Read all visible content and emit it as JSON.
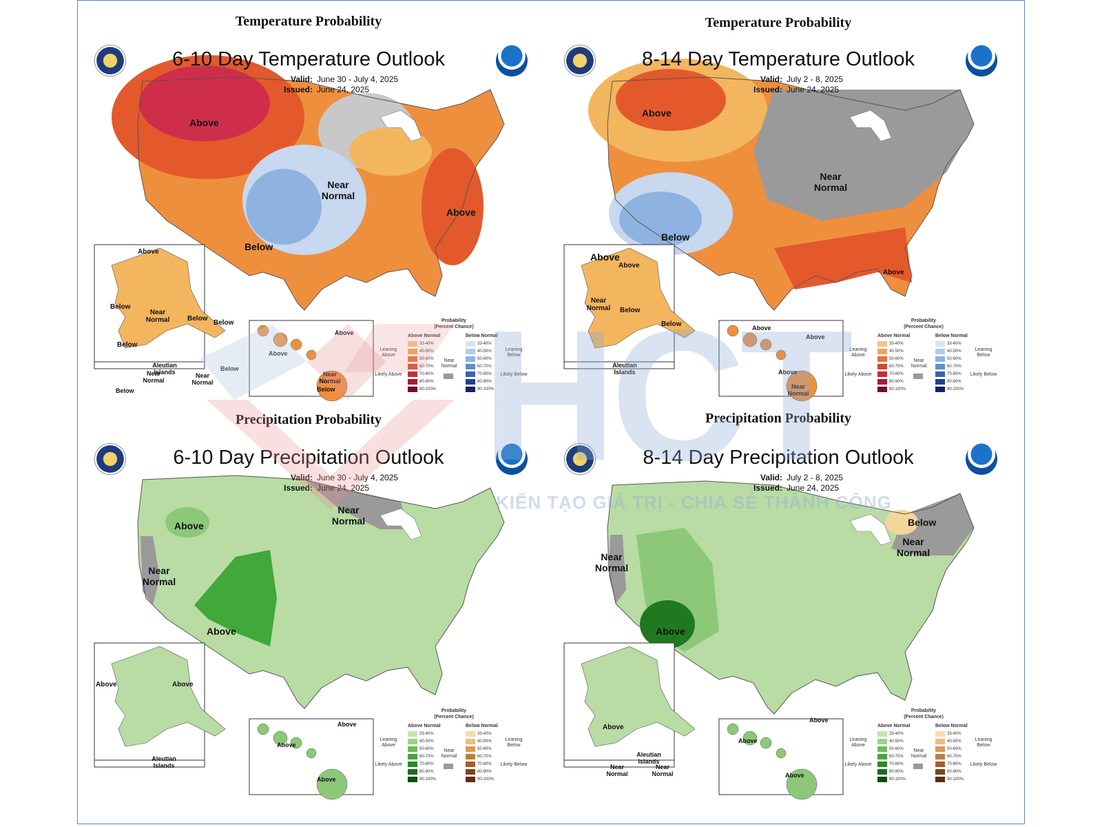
{
  "colors": {
    "frame": "#5b7fd1",
    "above_light": "#f4b55f",
    "above_mid": "#ee8f3e",
    "above_strong": "#e3592c",
    "above_max": "#cf2e4b",
    "below_light": "#c8d8ee",
    "below_mid": "#8fb3e0",
    "near_normal": "#9a9a9a",
    "wet_light": "#b8dca4",
    "wet_mid": "#8cc878",
    "wet_strong": "#41a83a",
    "wet_max": "#1f7a1f",
    "dry_light": "#f6d59a"
  },
  "panels": [
    {
      "section_title": "Temperature Probability",
      "map_title": "6-10 Day Temperature Outlook",
      "valid_label": "Valid:",
      "valid_value": "June 30 - July 4, 2025",
      "issued_label": "Issued:",
      "issued_value": "June 24, 2025",
      "labels": [
        "Above",
        "Near Normal",
        "Above",
        "Below",
        "Above",
        "Below",
        "Near Normal",
        "Below",
        "Below",
        "Below",
        "Aleutian Islands",
        "Near Normal",
        "Near Normal",
        "Below",
        "Below",
        "Above",
        "Above",
        "Near Normal",
        "Below"
      ]
    },
    {
      "section_title": "Temperature Probability",
      "map_title": "8-14 Day Temperature Outlook",
      "valid_label": "Valid:",
      "valid_value": "July 2 - 8, 2025",
      "issued_label": "Issued:",
      "issued_value": "June 24, 2025",
      "labels": [
        "Above",
        "Near Normal",
        "Below",
        "Above",
        "Above",
        "Above",
        "Near Normal",
        "Below",
        "Below",
        "Aleutian Islands",
        "Above",
        "Above",
        "Above",
        "Near Normal"
      ]
    },
    {
      "section_title": "Precipitation Probability",
      "map_title": "6-10 Day Precipitation Outlook",
      "valid_label": "Valid:",
      "valid_value": "June 30 - July 4, 2025",
      "issued_label": "Issued:",
      "issued_value": "June 24, 2025",
      "labels": [
        "Above",
        "Near Normal",
        "Near Normal",
        "Above",
        "Above",
        "Above",
        "Aleutian Islands",
        "Above",
        "Above",
        "Above"
      ]
    },
    {
      "section_title": "Precipitation Probability",
      "map_title": "8-14 Day Precipitation Outlook",
      "valid_label": "Valid:",
      "valid_value": "July 2 - 8, 2025",
      "issued_label": "Issued:",
      "issued_value": "June 24, 2025",
      "labels": [
        "Below",
        "Near Normal",
        "Near Normal",
        "Above",
        "Above",
        "Aleutian Islands",
        "Near Normal",
        "Near Normal",
        "Above",
        "Above",
        "Above"
      ]
    }
  ],
  "legend": {
    "heading": "Probability",
    "subheading": "(Percent Chance)",
    "col_above": "Above Normal",
    "col_below": "Below Normal",
    "ranges": [
      "33-40%",
      "40-50%",
      "50-60%",
      "60-70%",
      "70-80%",
      "80-90%",
      "90-100%"
    ],
    "leaning_above": "Leaning Above",
    "likely_above": "Likely Above",
    "leaning_below": "Leaning Below",
    "likely_below": "Likely Below",
    "near_normal": "Near Normal",
    "temp_above_colors": [
      "#f4c48a",
      "#f0a35a",
      "#e86f3a",
      "#d9452e",
      "#c42d3d",
      "#9c1f35",
      "#6b1025"
    ],
    "temp_below_colors": [
      "#d8e4f2",
      "#b3cbe8",
      "#8fb3e0",
      "#5d8fd0",
      "#3a63b8",
      "#243f8f",
      "#16205e"
    ],
    "precip_above_colors": [
      "#c4e4b0",
      "#9ed28a",
      "#6dbb5a",
      "#41a83a",
      "#2a8a2a",
      "#1c6b1c",
      "#0f4a0f"
    ],
    "precip_below_colors": [
      "#f6dcb0",
      "#e9bf84",
      "#d89a5c",
      "#c27a3e",
      "#a55e2a",
      "#7f4420",
      "#5a2e16"
    ]
  },
  "watermark": {
    "letters": "HCT",
    "slogan": "KIẾN TẠO GIÁ TRỊ - CHIA SẺ THÀNH CÔNG"
  }
}
